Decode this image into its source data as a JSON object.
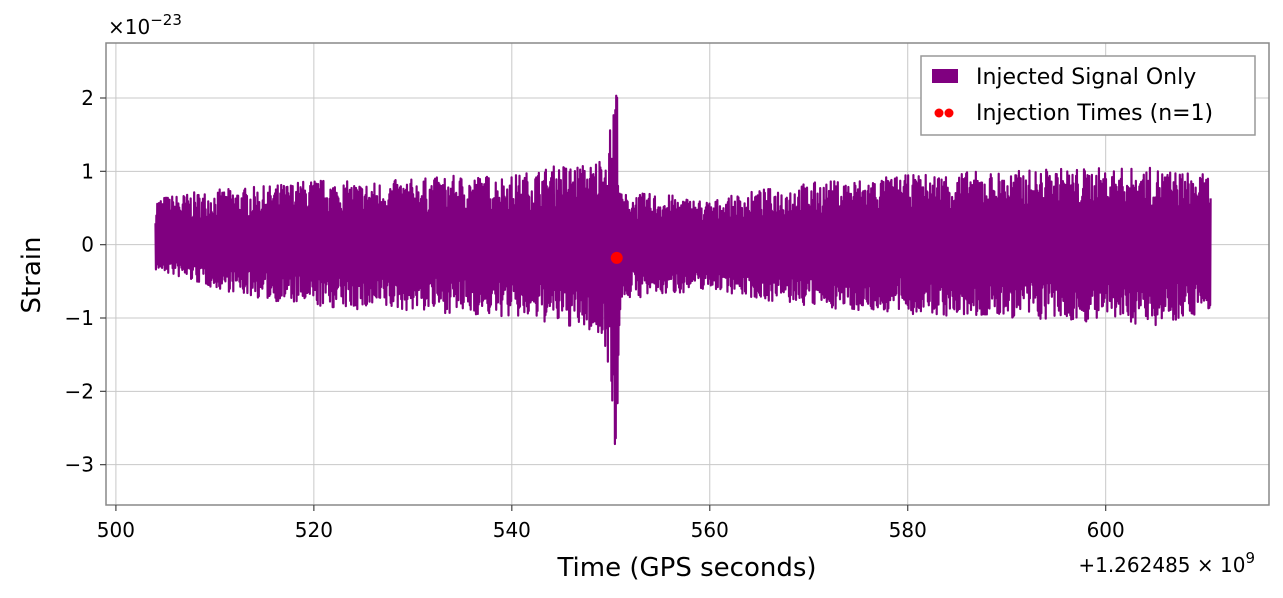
{
  "chart_data": {
    "type": "line",
    "xlabel": "Time (GPS seconds)",
    "ylabel": "Strain",
    "x_offset_label": "+1.262485 × 10",
    "x_offset_exponent": "9",
    "y_multiplier_label": "×10",
    "y_multiplier_exponent": "−23",
    "xlim": [
      499.0,
      616.5
    ],
    "ylim": [
      -3.55,
      2.75
    ],
    "xticks": [
      500,
      520,
      540,
      560,
      580,
      600
    ],
    "xtick_labels": [
      "500",
      "520",
      "540",
      "560",
      "580",
      "600"
    ],
    "yticks": [
      2,
      1,
      0,
      -1,
      -2,
      -3
    ],
    "ytick_labels": [
      "2",
      "1",
      "0",
      "−1",
      "−2",
      "−3"
    ],
    "grid": true,
    "legend_position": "top-right",
    "series": [
      {
        "name": "Injected Signal Only",
        "type": "line",
        "color": "#800080",
        "x_range": [
          504.0,
          610.6
        ],
        "envelope_upper": [
          [
            504,
            0.65
          ],
          [
            510,
            0.75
          ],
          [
            515,
            0.8
          ],
          [
            520,
            0.9
          ],
          [
            525,
            0.85
          ],
          [
            530,
            0.9
          ],
          [
            535,
            0.95
          ],
          [
            540,
            0.95
          ],
          [
            545,
            1.1
          ],
          [
            548,
            1.1
          ],
          [
            549.5,
            1.3
          ],
          [
            550.2,
            1.8
          ],
          [
            550.55,
            2.48
          ],
          [
            551.0,
            0.7
          ],
          [
            555,
            0.7
          ],
          [
            560,
            0.6
          ],
          [
            565,
            0.75
          ],
          [
            570,
            0.85
          ],
          [
            575,
            0.9
          ],
          [
            580,
            0.95
          ],
          [
            585,
            1.0
          ],
          [
            590,
            1.0
          ],
          [
            595,
            1.05
          ],
          [
            600,
            1.05
          ],
          [
            605,
            1.05
          ],
          [
            610.6,
            0.95
          ]
        ],
        "envelope_lower": [
          [
            504,
            -0.35
          ],
          [
            510,
            -0.6
          ],
          [
            515,
            -0.75
          ],
          [
            520,
            -0.85
          ],
          [
            525,
            -0.9
          ],
          [
            530,
            -0.9
          ],
          [
            535,
            -0.95
          ],
          [
            540,
            -1.0
          ],
          [
            545,
            -1.1
          ],
          [
            548,
            -1.2
          ],
          [
            549.5,
            -1.4
          ],
          [
            550.2,
            -2.2
          ],
          [
            550.55,
            -3.28
          ],
          [
            551.0,
            -0.75
          ],
          [
            555,
            -0.7
          ],
          [
            560,
            -0.6
          ],
          [
            565,
            -0.75
          ],
          [
            570,
            -0.85
          ],
          [
            575,
            -0.9
          ],
          [
            580,
            -0.95
          ],
          [
            585,
            -1.0
          ],
          [
            590,
            -1.0
          ],
          [
            595,
            -1.05
          ],
          [
            600,
            -1.05
          ],
          [
            605,
            -1.1
          ],
          [
            610.6,
            -0.9
          ]
        ]
      },
      {
        "name": "Injection Times (n=1)",
        "type": "scatter",
        "color": "#ff0000",
        "points": [
          {
            "x": 550.6,
            "y": -0.18
          }
        ]
      }
    ]
  }
}
